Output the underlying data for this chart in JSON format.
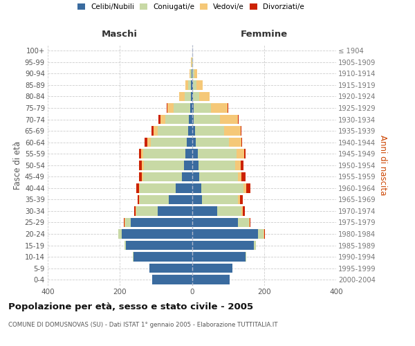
{
  "age_groups": [
    "0-4",
    "5-9",
    "10-14",
    "15-19",
    "20-24",
    "25-29",
    "30-34",
    "35-39",
    "40-44",
    "45-49",
    "50-54",
    "55-59",
    "60-64",
    "65-69",
    "70-74",
    "75-79",
    "80-84",
    "85-89",
    "90-94",
    "95-99",
    "100+"
  ],
  "birth_years": [
    "2000-2004",
    "1995-1999",
    "1990-1994",
    "1985-1989",
    "1980-1984",
    "1975-1979",
    "1970-1974",
    "1965-1969",
    "1960-1964",
    "1955-1959",
    "1950-1954",
    "1945-1949",
    "1940-1944",
    "1935-1939",
    "1930-1934",
    "1925-1929",
    "1920-1924",
    "1915-1919",
    "1910-1914",
    "1905-1909",
    "≤ 1904"
  ],
  "maschi": {
    "celibi": [
      110,
      118,
      162,
      183,
      195,
      170,
      95,
      65,
      45,
      28,
      22,
      18,
      14,
      10,
      8,
      5,
      3,
      2,
      1,
      0,
      0
    ],
    "coniugati": [
      0,
      0,
      2,
      5,
      10,
      15,
      60,
      80,
      100,
      108,
      112,
      118,
      100,
      85,
      65,
      45,
      18,
      8,
      3,
      1,
      0
    ],
    "vedovi": [
      0,
      0,
      0,
      0,
      0,
      2,
      1,
      1,
      2,
      3,
      5,
      5,
      10,
      12,
      15,
      18,
      15,
      8,
      3,
      1,
      0
    ],
    "divorziati": [
      0,
      0,
      0,
      0,
      0,
      2,
      4,
      4,
      8,
      8,
      8,
      5,
      8,
      5,
      5,
      2,
      0,
      0,
      0,
      0,
      0
    ]
  },
  "femmine": {
    "nubili": [
      105,
      112,
      148,
      172,
      183,
      128,
      70,
      28,
      25,
      20,
      18,
      16,
      10,
      8,
      5,
      5,
      3,
      2,
      1,
      0,
      0
    ],
    "coniugate": [
      0,
      0,
      2,
      5,
      15,
      30,
      68,
      100,
      118,
      108,
      102,
      108,
      92,
      82,
      72,
      48,
      18,
      10,
      5,
      1,
      0
    ],
    "vedove": [
      0,
      0,
      0,
      0,
      2,
      3,
      3,
      5,
      8,
      10,
      15,
      20,
      35,
      45,
      50,
      45,
      28,
      18,
      8,
      2,
      0
    ],
    "divorziate": [
      0,
      0,
      0,
      0,
      2,
      2,
      5,
      8,
      12,
      10,
      8,
      5,
      3,
      3,
      2,
      2,
      0,
      0,
      0,
      0,
      0
    ]
  },
  "colors": {
    "celibi": "#3A6B9F",
    "coniugati": "#C8D9A5",
    "vedovi": "#F5C878",
    "divorziati": "#CC2200"
  },
  "xlim": 400,
  "title": "Popolazione per età, sesso e stato civile - 2005",
  "subtitle": "COMUNE DI DOMUSNOVAS (SU) - Dati ISTAT 1° gennaio 2005 - Elaborazione TUTTITALIA.IT",
  "ylabel_left": "Fasce di età",
  "ylabel_right": "Anni di nascita",
  "xlabel_left": "Maschi",
  "xlabel_right": "Femmine"
}
